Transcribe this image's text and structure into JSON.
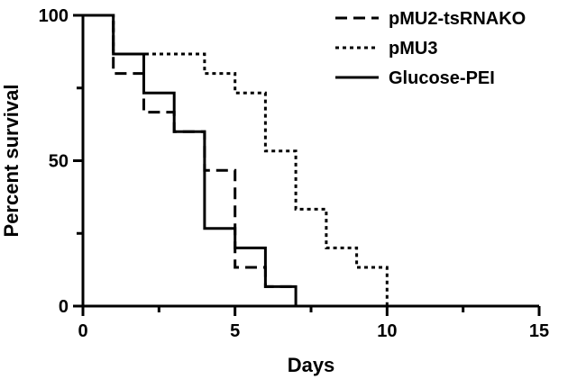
{
  "chart_data": {
    "type": "line",
    "subtype": "step (Kaplan-Meier survival)",
    "title": "",
    "xlabel": "Days",
    "ylabel": "Percent survival",
    "xlim": [
      0,
      15
    ],
    "ylim": [
      0,
      100
    ],
    "xticks": [
      "0",
      "5",
      "10",
      "15"
    ],
    "yticks": [
      "0",
      "50",
      "100"
    ],
    "grid": false,
    "legend_position": "top-right",
    "series": [
      {
        "name": "pMU2-tsRNAKO",
        "line_style": "long-dash",
        "color": "#000000",
        "x": [
          0,
          1,
          1,
          2,
          2,
          3,
          3,
          4,
          4,
          5,
          5,
          6,
          6,
          7
        ],
        "y": [
          100,
          100,
          80,
          80,
          66.7,
          66.7,
          60,
          60,
          46.7,
          46.7,
          13.3,
          13.3,
          6.7,
          6.7
        ]
      },
      {
        "name": "pMU3",
        "line_style": "short-dash",
        "color": "#000000",
        "x": [
          0,
          1,
          1,
          4,
          4,
          5,
          5,
          6,
          6,
          7,
          7,
          8,
          8,
          9,
          9,
          10,
          10
        ],
        "y": [
          100,
          100,
          86.7,
          86.7,
          80,
          80,
          73.3,
          73.3,
          53.3,
          53.3,
          33.3,
          33.3,
          20,
          20,
          13.3,
          13.3,
          0
        ]
      },
      {
        "name": "Glucose-PEI",
        "line_style": "solid",
        "color": "#000000",
        "x": [
          0,
          1,
          1,
          2,
          2,
          3,
          3,
          4,
          4,
          5,
          5,
          6,
          6,
          7,
          7
        ],
        "y": [
          100,
          100,
          86.7,
          86.7,
          73.3,
          73.3,
          60,
          60,
          26.7,
          26.7,
          20,
          20,
          6.7,
          6.7,
          0
        ]
      }
    ]
  }
}
